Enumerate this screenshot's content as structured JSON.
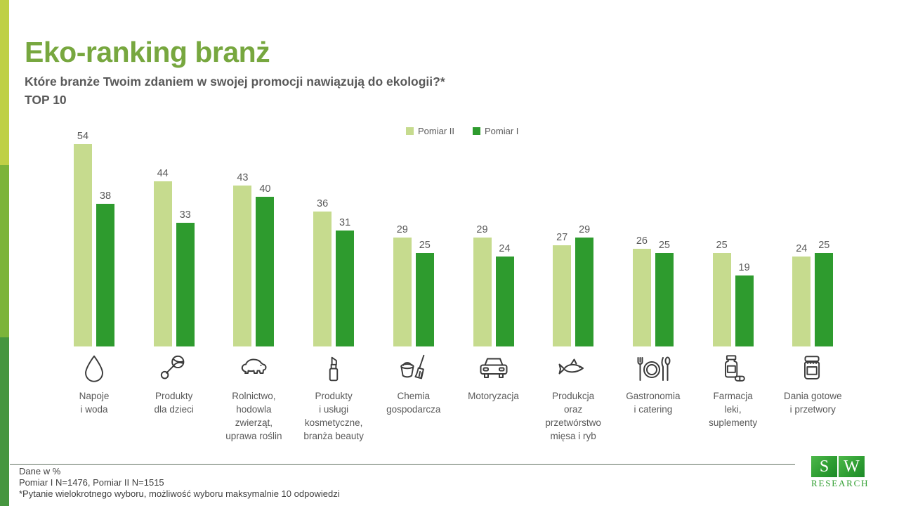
{
  "page": {
    "title": "Eko-ranking branż",
    "question": "Które branże Twoim zdaniem w swojej promocji nawiązują do ekologii?*",
    "question_line2": "TOP 10"
  },
  "chart_data": {
    "type": "bar",
    "title": "Eko-ranking branż",
    "question": "Które branże Twoim zdaniem w swojej promocji nawiązują do ekologii?*",
    "top_label": "TOP 10",
    "unit": "%",
    "legend_position": "top-center",
    "value_labels": true,
    "y_axis_visible": false,
    "ylim": [
      0,
      57
    ],
    "categories": [
      "Napoje\ni woda",
      "Produkty\ndla dzieci",
      "Rolnictwo,\nhodowla\nzwierząt,\nuprawa roślin",
      "Produkty\ni usługi\nkosmetyczne,\nbranża beauty",
      "Chemia\ngospodarcza",
      "Motoryzacja",
      "Produkcja\noraz\nprzetwórstwo\nmięsa i ryb",
      "Gastronomia\ni catering",
      "Farmacja\nleki,\nsuplementy",
      "Dania gotowe\ni przetwory"
    ],
    "icons": [
      "water-drop",
      "baby-rattle",
      "pig",
      "lipstick",
      "bucket-and-broom",
      "car",
      "fish",
      "plate-with-cutlery",
      "pill-bottle",
      "preserve-jar"
    ],
    "series": [
      {
        "name": "Pomiar II",
        "color": "#C6DB8E",
        "values": [
          54,
          44,
          43,
          36,
          29,
          29,
          27,
          26,
          25,
          24
        ]
      },
      {
        "name": "Pomiar I",
        "color": "#2E9B2E",
        "values": [
          38,
          33,
          40,
          31,
          25,
          24,
          29,
          25,
          19,
          25
        ]
      }
    ]
  },
  "footer": {
    "line1": "Dane w %",
    "line2": "Pomiar I N=1476, Pomiar II N=1515",
    "line3": "*Pytanie wielokrotnego wyboru, możliwość wyboru maksymalnie 10 odpowiedzi"
  },
  "logo": {
    "letter1": "S",
    "letter2": "W",
    "caption": "RESEARCH"
  },
  "accent_stripe_colors": [
    "#BFD046",
    "#7CB43A",
    "#46963F"
  ]
}
